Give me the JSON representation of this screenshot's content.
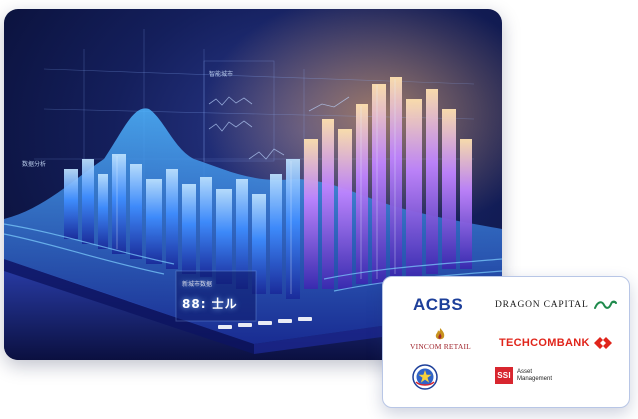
{
  "hero": {
    "hud_value": "88: 士ル",
    "hud_caption": "新城市数据",
    "side_label_left": "数据分析",
    "side_label_mid": "智能城市"
  },
  "partners": {
    "acbs": "ACBS",
    "dragon_capital": "DRAGON CAPITAL",
    "vincom_retail": "VINCOM RETAIL",
    "techcombank": "TECHCOMBANK",
    "ssi_mark": "SSI",
    "ssi_line1": "Asset",
    "ssi_line2": "Management"
  },
  "colors": {
    "acbs_blue": "#1d3f9a",
    "techcom_red": "#e0251b",
    "ssi_red": "#d8262f",
    "dragon_green": "#1f8a4c",
    "vincom_red": "#a0262e"
  }
}
